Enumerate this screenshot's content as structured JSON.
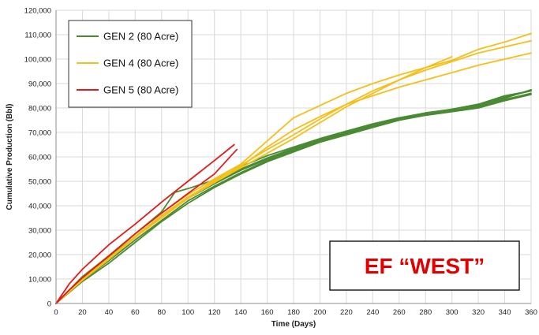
{
  "chart_data": {
    "type": "line",
    "xlabel": "Time (Days)",
    "ylabel": "Cumulative Production (Bbl)",
    "xlim": [
      0,
      360
    ],
    "ylim": [
      0,
      120000
    ],
    "xticks": [
      "0",
      "20",
      "40",
      "60",
      "80",
      "100",
      "120",
      "140",
      "160",
      "180",
      "200",
      "220",
      "240",
      "260",
      "280",
      "300",
      "320",
      "340",
      "360"
    ],
    "yticks": [
      "0",
      "10,000",
      "20,000",
      "30,000",
      "40,000",
      "50,000",
      "60,000",
      "70,000",
      "80,000",
      "90,000",
      "100,000",
      "110,000",
      "120,000"
    ],
    "grid": true,
    "legend_position": "top-left",
    "annotation": "EF “WEST”",
    "annotation_color": "#e00000",
    "groups": [
      {
        "name": "GEN 2 (80 Acre)",
        "color": "#4a8a32",
        "wells": [
          {
            "x": [
              0,
              20,
              40,
              60,
              80,
              100,
              120,
              140,
              160,
              180,
              200,
              220,
              240,
              260,
              280,
              300,
              320,
              340,
              360
            ],
            "y": [
              0,
              10500,
              19000,
              27500,
              36000,
              43500,
              49500,
              55000,
              59500,
              63500,
              67000,
              70500,
              73500,
              76000,
              78000,
              79500,
              81000,
              84000,
              87500
            ]
          },
          {
            "x": [
              0,
              20,
              40,
              60,
              80,
              100,
              120,
              140,
              160,
              180,
              200,
              220,
              240,
              260,
              280,
              300,
              320,
              340,
              360
            ],
            "y": [
              0,
              9500,
              17500,
              26000,
              34000,
              42000,
              48000,
              53500,
              58500,
              62500,
              66500,
              69500,
              72500,
              75000,
              77500,
              79000,
              80500,
              83500,
              86000
            ]
          },
          {
            "x": [
              0,
              20,
              40,
              60,
              80,
              100,
              120,
              140,
              160,
              180,
              200,
              220,
              240,
              260,
              280,
              300,
              320,
              340,
              360
            ],
            "y": [
              0,
              9000,
              16500,
              25000,
              33500,
              41000,
              47500,
              53000,
              58000,
              62000,
              66000,
              69000,
              72000,
              75000,
              77000,
              78500,
              80000,
              83000,
              85500
            ]
          },
          {
            "x": [
              0,
              20,
              40,
              60,
              80,
              100,
              120,
              140,
              160,
              180,
              200,
              220,
              240,
              260,
              280,
              300,
              320,
              340,
              360
            ],
            "y": [
              0,
              10000,
              18500,
              27000,
              35500,
              43000,
              49000,
              54500,
              59000,
              63000,
              67000,
              70000,
              73000,
              75500,
              77500,
              79500,
              81500,
              84500,
              87000
            ]
          },
          {
            "x": [
              0,
              20,
              40,
              60,
              80,
              90,
              100,
              120,
              140,
              160,
              180,
              200,
              220,
              240,
              260,
              280,
              300,
              320,
              340,
              360
            ],
            "y": [
              0,
              11000,
              19500,
              28500,
              37500,
              45500,
              47000,
              50500,
              56000,
              60500,
              64000,
              67500,
              70500,
              73000,
              75500,
              77500,
              79500,
              81500,
              85000,
              87000
            ]
          }
        ]
      },
      {
        "name": "GEN 4 (80 Acre)",
        "color": "#f5bf1a",
        "wells": [
          {
            "x": [
              0,
              20,
              40,
              60,
              80,
              100,
              120,
              140,
              160,
              180,
              200,
              220,
              240,
              260,
              280,
              300,
              320,
              340,
              360
            ],
            "y": [
              0,
              10500,
              19500,
              28500,
              37000,
              44500,
              51000,
              57000,
              66500,
              76000,
              81000,
              86000,
              90000,
              93500,
              96500,
              99500,
              104000,
              107000,
              110500
            ]
          },
          {
            "x": [
              0,
              20,
              40,
              60,
              80,
              100,
              120,
              140,
              160,
              180,
              200,
              220,
              240,
              260,
              280,
              300,
              320,
              340,
              360
            ],
            "y": [
              0,
              10000,
              18500,
              27500,
              36000,
              43500,
              50000,
              56500,
              63000,
              69000,
              75500,
              81500,
              87000,
              91500,
              95500,
              99000,
              102500,
              105000,
              107500
            ]
          },
          {
            "x": [
              0,
              20,
              40,
              60,
              80,
              100,
              120,
              140,
              160,
              180,
              200,
              220,
              240,
              260,
              280,
              300
            ],
            "y": [
              0,
              9500,
              18000,
              27000,
              35500,
              43000,
              49500,
              55500,
              61500,
              67500,
              74000,
              80500,
              86000,
              91500,
              96500,
              101000
            ]
          },
          {
            "x": [
              0,
              20,
              40,
              60,
              80,
              100,
              120,
              140,
              160,
              180,
              200,
              220,
              240,
              260,
              280,
              300,
              320,
              340,
              360
            ],
            "y": [
              0,
              10000,
              18000,
              27000,
              35000,
              43000,
              50500,
              56000,
              64000,
              71000,
              76500,
              81500,
              85000,
              88500,
              91500,
              94500,
              97500,
              100000,
              102500
            ]
          }
        ]
      },
      {
        "name": "GEN 5 (80 Acre)",
        "color": "#e01a1a",
        "wells": [
          {
            "x": [
              0,
              10,
              20,
              40,
              60,
              80,
              100,
              120,
              135
            ],
            "y": [
              0,
              8000,
              14000,
              24000,
              32500,
              41500,
              50000,
              58500,
              65000
            ]
          },
          {
            "x": [
              0,
              10,
              20,
              40,
              60,
              80,
              100,
              120,
              137
            ],
            "y": [
              0,
              5500,
              10500,
              19500,
              28500,
              37000,
              45000,
              53000,
              63000
            ]
          }
        ]
      }
    ]
  }
}
